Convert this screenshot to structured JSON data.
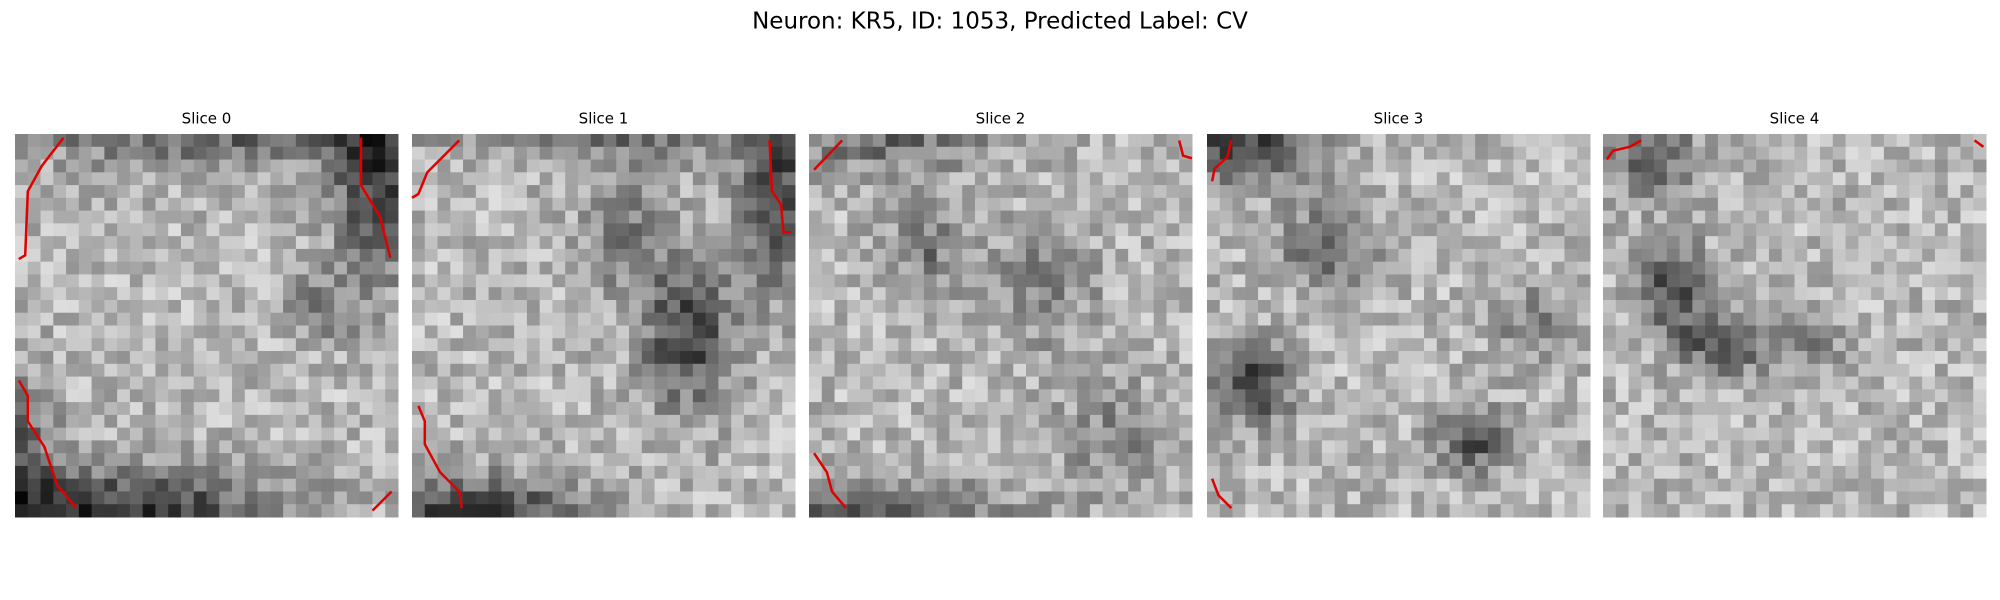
{
  "title": "Neuron: KR5, ID: 1053, Predicted Label: CV",
  "panels": [
    {
      "title": "Slice 0"
    },
    {
      "title": "Slice 1"
    },
    {
      "title": "Slice 2"
    },
    {
      "title": "Slice 3"
    },
    {
      "title": "Slice 4"
    }
  ]
}
